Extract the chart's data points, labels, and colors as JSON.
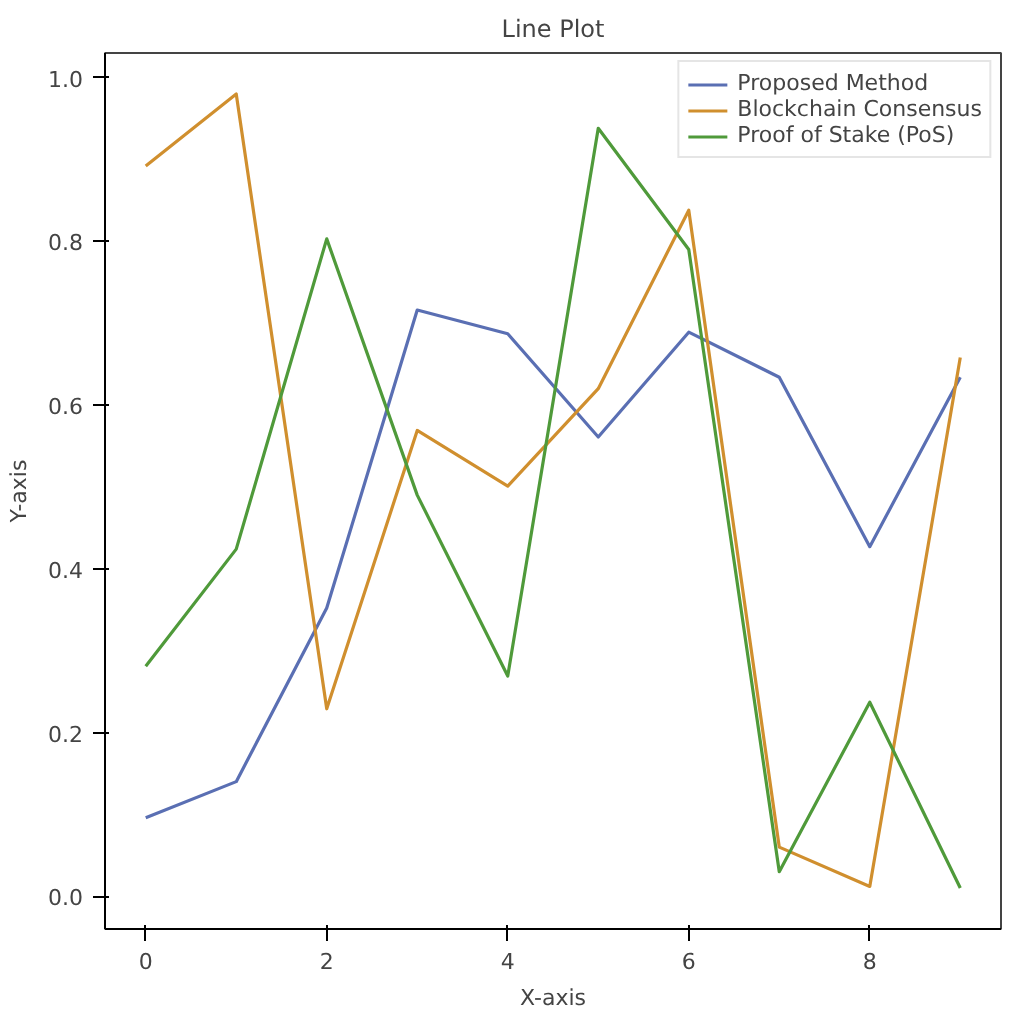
{
  "chart_data": {
    "type": "line",
    "title": "Line Plot",
    "xlabel": "X-axis",
    "ylabel": "Y-axis",
    "x": [
      0,
      1,
      2,
      3,
      4,
      5,
      6,
      7,
      8,
      9
    ],
    "series": [
      {
        "name": "Proposed Method",
        "color": "#5a6fb3",
        "values": [
          0.096,
          0.14,
          0.352,
          0.716,
          0.687,
          0.561,
          0.689,
          0.634,
          0.427,
          0.634
        ]
      },
      {
        "name": "Blockchain Consensus",
        "color": "#d08f2e",
        "values": [
          0.892,
          0.98,
          0.229,
          0.569,
          0.501,
          0.62,
          0.838,
          0.06,
          0.012,
          0.658
        ]
      },
      {
        "name": "Proof of Stake (PoS)",
        "color": "#4f9a3a",
        "values": [
          0.281,
          0.424,
          0.803,
          0.49,
          0.269,
          0.938,
          0.79,
          0.03,
          0.237,
          0.01
        ]
      }
    ],
    "xlim": [
      -0.45,
      9.45
    ],
    "ylim": [
      -0.04,
      1.03
    ],
    "xticks": [
      0,
      2,
      4,
      6,
      8
    ],
    "yticks": [
      {
        "value": 0,
        "label": "0.0"
      },
      0.2,
      0.4,
      0.6,
      0.8,
      {
        "value": 1,
        "label": "1.0"
      }
    ],
    "grid": false,
    "legend": "top right"
  }
}
